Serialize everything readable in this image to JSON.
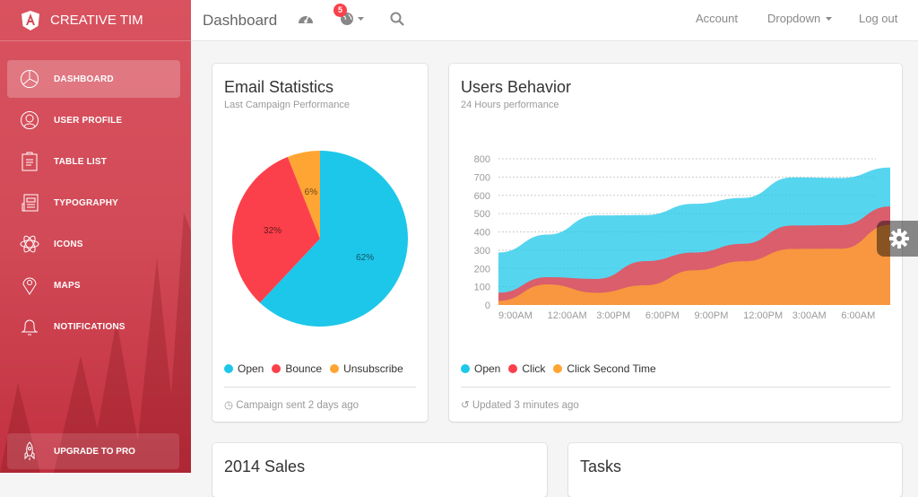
{
  "sidebar": {
    "brand": "CREATIVE TIM",
    "items": [
      {
        "label": "DASHBOARD",
        "icon": "chart-pie-icon",
        "active": true
      },
      {
        "label": "USER PROFILE",
        "icon": "user-icon"
      },
      {
        "label": "TABLE LIST",
        "icon": "clipboard-icon"
      },
      {
        "label": "TYPOGRAPHY",
        "icon": "news-paper-icon"
      },
      {
        "label": "ICONS",
        "icon": "atom-icon"
      },
      {
        "label": "MAPS",
        "icon": "pin-icon"
      },
      {
        "label": "NOTIFICATIONS",
        "icon": "bell-icon"
      }
    ],
    "upgrade": "UPGRADE TO PRO"
  },
  "navbar": {
    "title": "Dashboard",
    "notif_count": "5",
    "account": "Account",
    "dropdown": "Dropdown",
    "logout": "Log out"
  },
  "email_card": {
    "title": "Email Statistics",
    "category": "Last Campaign Performance",
    "legend": [
      "Open",
      "Bounce",
      "Unsubscribe"
    ],
    "footer": "Campaign sent 2 days ago"
  },
  "users_card": {
    "title": "Users Behavior",
    "category": "24 Hours performance",
    "legend": [
      "Open",
      "Click",
      "Click Second Time"
    ],
    "footer": "Updated 3 minutes ago"
  },
  "sales_card": {
    "title": "2014 Sales"
  },
  "tasks_card": {
    "title": "Tasks"
  },
  "colors": {
    "blue": "#1dc7ea",
    "red": "#fb404b",
    "orange": "#ffa534",
    "sidebar": "#d24a57"
  },
  "chart_data": [
    {
      "type": "pie",
      "values": [
        62,
        32,
        6
      ],
      "labels": [
        "62%",
        "32%",
        "6%"
      ],
      "categories": [
        "Open",
        "Bounce",
        "Unsubscribe"
      ]
    },
    {
      "type": "area",
      "categories": [
        "9:00AM",
        "12:00AM",
        "3:00PM",
        "6:00PM",
        "9:00PM",
        "12:00PM",
        "3:00AM",
        "6:00AM",
        ""
      ],
      "ylim": [
        0,
        800
      ],
      "yticks": [
        0,
        100,
        200,
        300,
        400,
        500,
        600,
        700,
        800
      ],
      "grid": true,
      "series": [
        {
          "name": "Open",
          "values": [
            287,
            385,
            490,
            492,
            554,
            586,
            698,
            695,
            752
          ]
        },
        {
          "name": "Click",
          "values": [
            67,
            152,
            143,
            240,
            287,
            335,
            435,
            437,
            539
          ]
        },
        {
          "name": "Click Second Time",
          "values": [
            23,
            113,
            67,
            108,
            190,
            239,
            307,
            308,
            439
          ]
        }
      ]
    }
  ]
}
